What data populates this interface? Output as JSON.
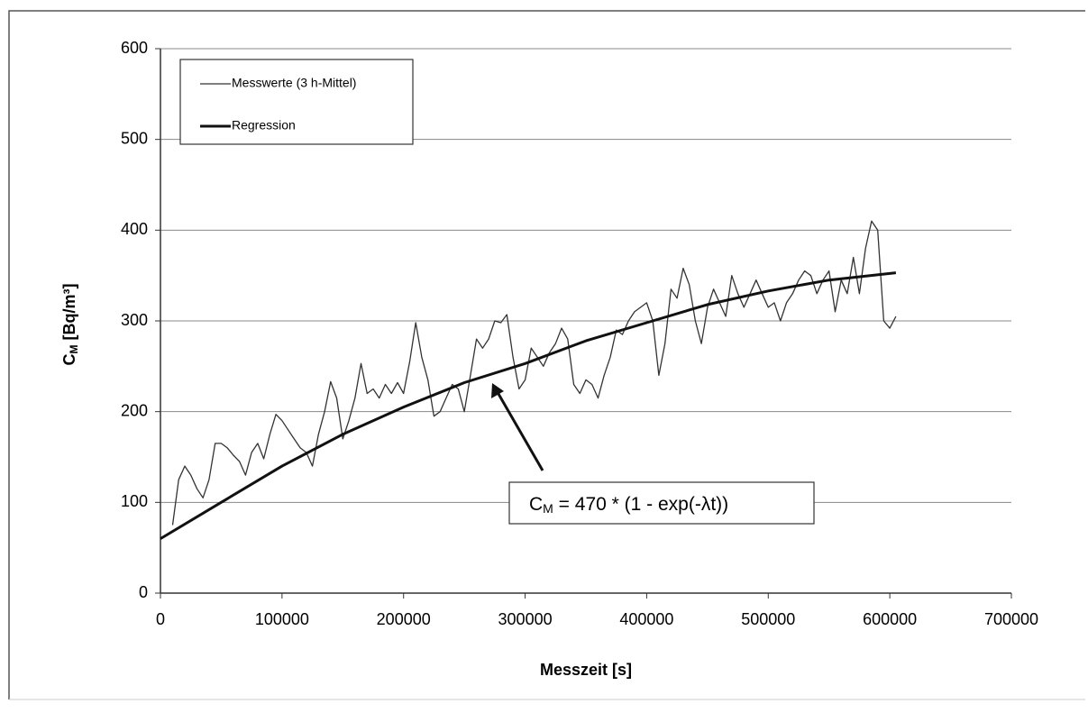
{
  "chart_data": {
    "type": "line",
    "y_label": {
      "main": "C",
      "sub": "M",
      "rest": " [Bq/m³]"
    },
    "x_label": "Messzeit [s]",
    "annotation": {
      "main": "C",
      "sub": "M",
      "rest": " = 470 * (1 - exp(-λt))"
    },
    "xlim": [
      0,
      700000
    ],
    "xticks": [
      0,
      100000,
      200000,
      300000,
      400000,
      500000,
      600000,
      700000
    ],
    "ylim": [
      0,
      600
    ],
    "yticks": [
      0,
      100,
      200,
      300,
      400,
      500,
      600
    ],
    "grid": true,
    "legend": "upper left",
    "series": [
      {
        "name": "Messwerte (3 h-Mittel)",
        "color": "#333333",
        "width": 1.3,
        "x": [
          10000,
          15000,
          20000,
          25000,
          30000,
          35000,
          40000,
          45000,
          50000,
          55000,
          60000,
          65000,
          70000,
          75000,
          80000,
          85000,
          90000,
          95000,
          100000,
          105000,
          110000,
          115000,
          120000,
          125000,
          130000,
          135000,
          140000,
          145000,
          150000,
          155000,
          160000,
          165000,
          170000,
          175000,
          180000,
          185000,
          190000,
          195000,
          200000,
          205000,
          210000,
          215000,
          220000,
          225000,
          230000,
          235000,
          240000,
          245000,
          250000,
          255000,
          260000,
          265000,
          270000,
          275000,
          280000,
          285000,
          290000,
          295000,
          300000,
          305000,
          310000,
          315000,
          320000,
          325000,
          330000,
          335000,
          340000,
          345000,
          350000,
          355000,
          360000,
          365000,
          370000,
          375000,
          380000,
          385000,
          390000,
          395000,
          400000,
          405000,
          410000,
          415000,
          420000,
          425000,
          430000,
          435000,
          440000,
          445000,
          450000,
          455000,
          460000,
          465000,
          470000,
          475000,
          480000,
          485000,
          490000,
          495000,
          500000,
          505000,
          510000,
          515000,
          520000,
          525000,
          530000,
          535000,
          540000,
          545000,
          550000,
          555000,
          560000,
          565000,
          570000,
          575000,
          580000,
          585000,
          590000,
          595000,
          600000,
          605000
        ],
        "values": [
          75,
          125,
          140,
          130,
          115,
          105,
          125,
          165,
          165,
          160,
          152,
          145,
          130,
          155,
          165,
          148,
          175,
          197,
          190,
          180,
          170,
          160,
          155,
          140,
          175,
          200,
          233,
          215,
          170,
          190,
          215,
          253,
          220,
          225,
          215,
          230,
          220,
          232,
          220,
          255,
          298,
          260,
          235,
          195,
          200,
          215,
          230,
          225,
          200,
          240,
          280,
          270,
          280,
          300,
          298,
          307,
          260,
          225,
          235,
          270,
          260,
          250,
          265,
          275,
          292,
          280,
          230,
          220,
          235,
          230,
          215,
          240,
          260,
          290,
          285,
          300,
          310,
          315,
          320,
          300,
          240,
          275,
          335,
          325,
          358,
          340,
          300,
          275,
          315,
          335,
          320,
          305,
          350,
          330,
          315,
          330,
          345,
          330,
          315,
          320,
          300,
          320,
          330,
          345,
          355,
          350,
          330,
          345,
          355,
          310,
          345,
          330,
          370,
          330,
          380,
          410,
          400,
          300,
          292,
          305
        ]
      },
      {
        "name": "Regression",
        "color": "#111111",
        "width": 3,
        "x": [
          0,
          50000,
          100000,
          150000,
          200000,
          250000,
          300000,
          350000,
          400000,
          450000,
          500000,
          550000,
          605000
        ],
        "values": [
          60,
          100,
          140,
          175,
          205,
          232,
          253,
          278,
          298,
          318,
          333,
          345,
          353
        ]
      }
    ]
  }
}
